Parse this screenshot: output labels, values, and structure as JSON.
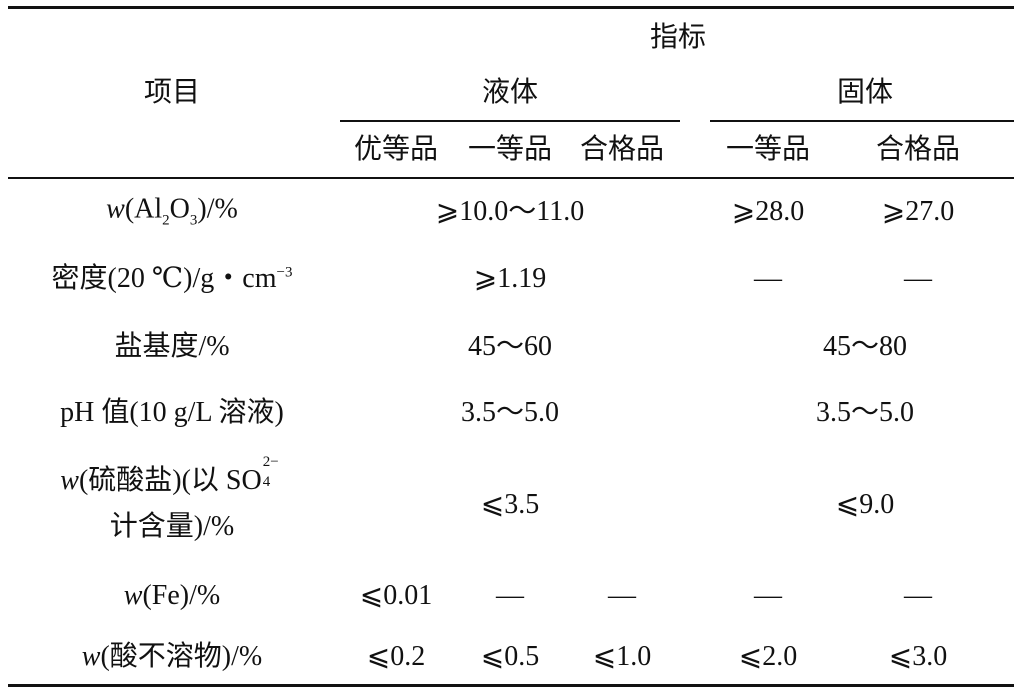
{
  "header": {
    "group": "指标",
    "item": "项目",
    "liquid": "液体",
    "solid": "固体",
    "grades": [
      "优等品",
      "一等品",
      "合格品",
      "一等品",
      "合格品"
    ]
  },
  "rows": [
    {
      "label": [
        "w",
        "(Al",
        "2",
        "O",
        "3",
        ")/%"
      ],
      "cells": [
        "⩾10.0～11.0",
        "⩾28.0",
        "⩾27.0"
      ]
    },
    {
      "label": [
        "密度(20 ℃)/g・cm",
        "−3"
      ],
      "cells": [
        "⩾1.19",
        "—",
        "—"
      ]
    },
    {
      "label": [
        "盐基度/%"
      ],
      "cells": [
        "45～60",
        "45～80"
      ]
    },
    {
      "label": [
        "pH 值(10 g/L 溶液)"
      ],
      "cells": [
        "3.5～5.0",
        "3.5～5.0"
      ]
    },
    {
      "label": [
        "w",
        "(硫酸盐)(以 SO",
        "4",
        "2−",
        "计含量)/%"
      ],
      "cells": [
        "⩽3.5",
        "⩽9.0"
      ]
    },
    {
      "label": [
        "w",
        "(Fe)/%"
      ],
      "cells": [
        "⩽0.01",
        "—",
        "—",
        "—",
        "—"
      ]
    },
    {
      "label": [
        "w",
        "(酸不溶物)/%"
      ],
      "cells": [
        "⩽0.2",
        "⩽0.5",
        "⩽1.0",
        "⩽2.0",
        "⩽3.0"
      ]
    }
  ]
}
